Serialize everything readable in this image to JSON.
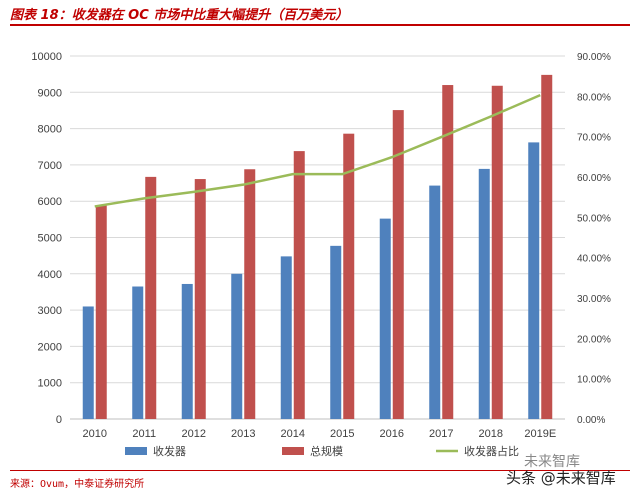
{
  "header": {
    "title": "图表 18：收发器在 OC 市场中比重大幅提升（百万美元）"
  },
  "footer": {
    "source": "来源：Ovum，中泰证券研究所",
    "watermark": "头条 @未来智库",
    "watermark_top": "未来智库"
  },
  "chart_data": {
    "type": "bar",
    "categories": [
      "2010",
      "2011",
      "2012",
      "2013",
      "2014",
      "2015",
      "2016",
      "2017",
      "2018",
      "2019E"
    ],
    "series": [
      {
        "name": "收发器",
        "type": "bar",
        "axis": "left",
        "color": "#4f81bd",
        "values": [
          3100,
          3650,
          3720,
          4000,
          4480,
          4770,
          5520,
          6430,
          6890,
          7620
        ]
      },
      {
        "name": "总规模",
        "type": "bar",
        "axis": "left",
        "color": "#c0504d",
        "values": [
          5880,
          6670,
          6610,
          6880,
          7380,
          7860,
          8510,
          9200,
          9180,
          9480
        ]
      },
      {
        "name": "收发器占比",
        "type": "line",
        "axis": "right",
        "color": "#9bbb59",
        "values": [
          0.527,
          0.547,
          0.563,
          0.581,
          0.607,
          0.607,
          0.649,
          0.699,
          0.75,
          0.803
        ]
      }
    ],
    "ylim": [
      0,
      10000
    ],
    "y_ticks": [
      "0",
      "1000",
      "2000",
      "3000",
      "4000",
      "5000",
      "6000",
      "7000",
      "8000",
      "9000",
      "10000"
    ],
    "y2lim": [
      0,
      0.9
    ],
    "y2_ticks": [
      "0.00%",
      "10.00%",
      "20.00%",
      "30.00%",
      "40.00%",
      "50.00%",
      "60.00%",
      "70.00%",
      "80.00%",
      "90.00%"
    ],
    "grid": true,
    "legend_position": "bottom"
  }
}
